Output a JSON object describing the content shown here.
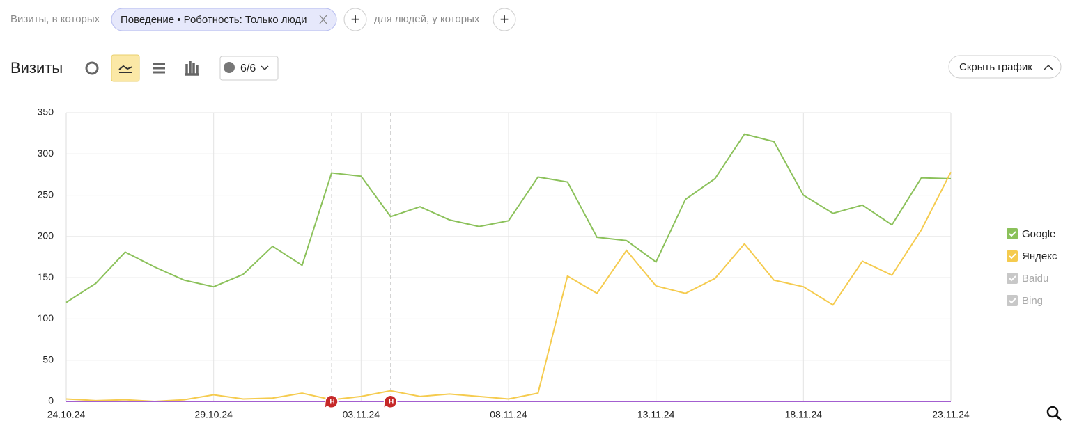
{
  "filters": {
    "prefix": "Визиты, в которых",
    "chip": "Поведение • Роботность: Только люди",
    "add_1": "+",
    "middle": "для людей, у которых",
    "add_2": "+"
  },
  "toolbar": {
    "title": "Визиты",
    "annotations_count": "6/6",
    "hide_chart": "Скрыть график"
  },
  "chart_data": {
    "type": "line",
    "categories": [
      "24.10.24",
      null,
      null,
      null,
      null,
      "29.10.24",
      null,
      null,
      null,
      null,
      "03.11.24",
      null,
      null,
      null,
      null,
      "08.11.24",
      null,
      null,
      null,
      null,
      "13.11.24",
      null,
      null,
      null,
      null,
      "18.11.24",
      null,
      null,
      null,
      null,
      "23.11.24"
    ],
    "highlighted_label_indices": [
      10,
      30
    ],
    "highlight_color": "#c62828",
    "ylim": [
      0,
      350
    ],
    "yticks": [
      0,
      50,
      100,
      150,
      200,
      250,
      300,
      350
    ],
    "grid": true,
    "legend": "right",
    "annotations": [
      {
        "index": 9,
        "label": "Н"
      },
      {
        "index": 11,
        "label": "Н"
      }
    ],
    "series": [
      {
        "name": "Google",
        "color": "#8bc15a",
        "enabled": true,
        "values": [
          120,
          143,
          181,
          163,
          147,
          139,
          154,
          188,
          165,
          277,
          273,
          224,
          236,
          220,
          212,
          219,
          272,
          266,
          199,
          195,
          169,
          245,
          270,
          324,
          315,
          250,
          228,
          238,
          214,
          271,
          270
        ]
      },
      {
        "name": "Яндекс",
        "color": "#f5cb4e",
        "enabled": true,
        "values": [
          3,
          1,
          2,
          0,
          2,
          8,
          3,
          4,
          10,
          2,
          6,
          13,
          6,
          9,
          6,
          3,
          10,
          152,
          131,
          183,
          140,
          131,
          149,
          191,
          147,
          139,
          117,
          170,
          153,
          208,
          278
        ]
      },
      {
        "name": "Baidu",
        "color": "#a35ed0",
        "enabled": false,
        "values": [
          0,
          0,
          0,
          0,
          0,
          0,
          0,
          0,
          0,
          0,
          0,
          0,
          0,
          0,
          0,
          0,
          0,
          0,
          0,
          0,
          0,
          0,
          0,
          0,
          0,
          0,
          0,
          0,
          0,
          0,
          0
        ]
      },
      {
        "name": "Bing",
        "color": "#a35ed0",
        "enabled": false,
        "values": [
          0,
          0,
          0,
          0,
          0,
          0,
          0,
          0,
          0,
          0,
          0,
          0,
          0,
          0,
          0,
          0,
          0,
          0,
          0,
          0,
          0,
          0,
          0,
          0,
          0,
          0,
          0,
          0,
          0,
          0,
          0
        ]
      }
    ]
  }
}
